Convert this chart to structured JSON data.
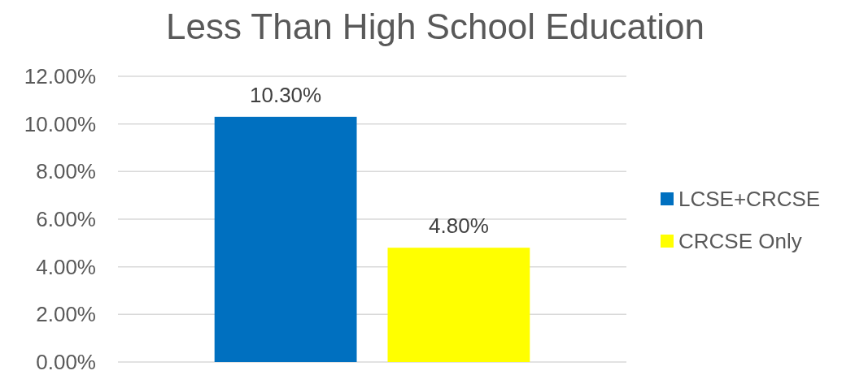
{
  "chart_data": {
    "type": "bar",
    "title": "Less Than High School Education",
    "categories": [
      null
    ],
    "series": [
      {
        "name": "LCSE+CRCSE",
        "color": "#0070c0",
        "values": [
          10.3
        ],
        "value_labels": [
          "10.30%"
        ]
      },
      {
        "name": "CRCSE Only",
        "color": "#ffff00",
        "values": [
          4.8
        ],
        "value_labels": [
          "4.80%"
        ]
      }
    ],
    "ylim": [
      0,
      12
    ],
    "yticks": [
      {
        "value": 0,
        "label": "0.00%"
      },
      {
        "value": 2,
        "label": "2.00%"
      },
      {
        "value": 4,
        "label": "4.00%"
      },
      {
        "value": 6,
        "label": "6.00%"
      },
      {
        "value": 8,
        "label": "8.00%"
      },
      {
        "value": 10,
        "label": "10.00%"
      },
      {
        "value": 12,
        "label": "12.00%"
      }
    ],
    "grid": "y",
    "legend": "right"
  }
}
